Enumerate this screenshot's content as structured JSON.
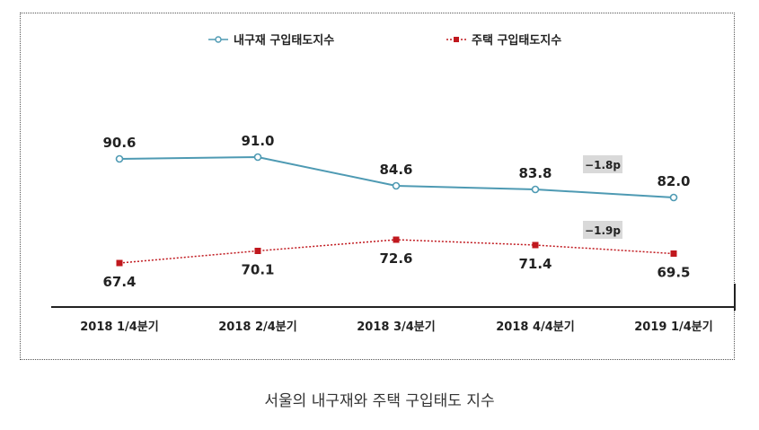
{
  "chart_data": {
    "type": "line",
    "categories": [
      "2018 1/4분기",
      "2018 2/4분기",
      "2018 3/4분기",
      "2018 4/4분기",
      "2019 1/4분기"
    ],
    "series": [
      {
        "name": "내구재 구입태도지수",
        "values": [
          90.6,
          91.0,
          84.6,
          83.8,
          82.0
        ],
        "labels": [
          "90.6",
          "91.0",
          "84.6",
          "83.8",
          "82.0"
        ],
        "color": "#4e9ab3",
        "style": "solid"
      },
      {
        "name": "주택 구입태도지수",
        "values": [
          67.4,
          70.1,
          72.6,
          71.4,
          69.5
        ],
        "labels": [
          "67.4",
          "70.1",
          "72.6",
          "71.4",
          "69.5"
        ],
        "color": "#c0181e",
        "style": "dotted"
      }
    ],
    "annotations": [
      "−1.8p",
      "−1.9p"
    ],
    "legend_position": "top",
    "ylim": [
      60,
      100
    ],
    "grid": false
  },
  "caption": "서울의 내구재와 주택 구입태도 지수"
}
